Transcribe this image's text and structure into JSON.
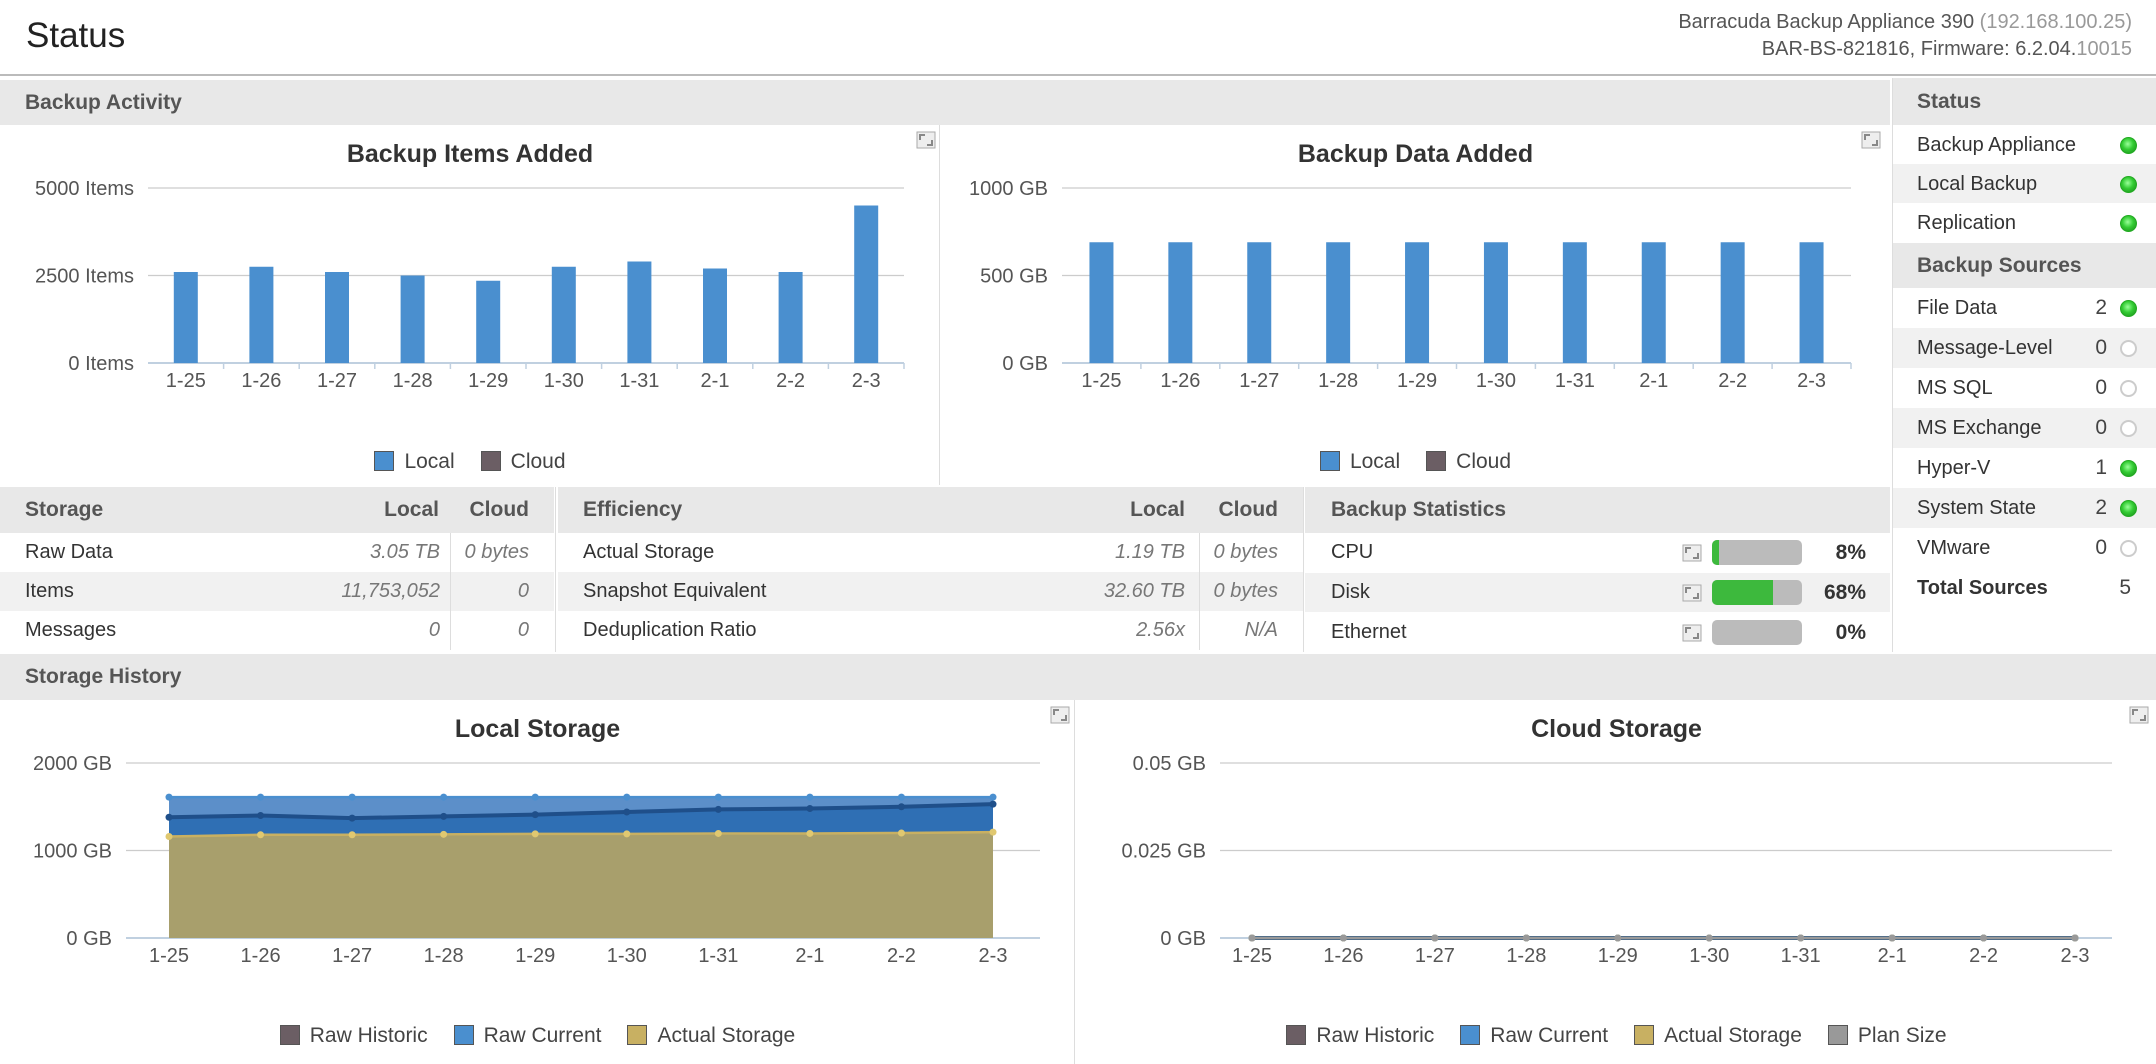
{
  "page_title": "Status",
  "device": {
    "model": "Barracuda Backup Appliance 390",
    "ip": "(192.168.100.25)",
    "serial_firmware": "BAR-BS-821816, Firmware: 6.2.04.",
    "build": "10015"
  },
  "sections": {
    "backup_activity": "Backup Activity",
    "storage_history": "Storage History"
  },
  "colors": {
    "local": "#4a8fcf",
    "cloud": "#6b5e64",
    "raw_historic": "#6b5e64",
    "raw_current": "#4a8fcf",
    "actual_storage": "#c8b062",
    "plan_size": "#999999",
    "ok_green": "#3db93d"
  },
  "chart_data": [
    {
      "id": "items",
      "type": "bar",
      "title": "Backup Items Added",
      "categories": [
        "1-25",
        "1-26",
        "1-27",
        "1-28",
        "1-29",
        "1-30",
        "1-31",
        "2-1",
        "2-2",
        "2-3"
      ],
      "series": [
        {
          "name": "Local",
          "values": [
            2600,
            2750,
            2600,
            2500,
            2350,
            2750,
            2900,
            2700,
            2600,
            4500
          ]
        },
        {
          "name": "Cloud",
          "values": [
            0,
            0,
            0,
            0,
            0,
            0,
            0,
            0,
            0,
            0
          ]
        }
      ],
      "yticks": [
        0,
        2500,
        5000
      ],
      "ytick_labels": [
        "0 Items",
        "2500 Items",
        "5000 Items"
      ],
      "ylim": [
        0,
        5000
      ]
    },
    {
      "id": "data",
      "type": "bar",
      "title": "Backup Data Added",
      "categories": [
        "1-25",
        "1-26",
        "1-27",
        "1-28",
        "1-29",
        "1-30",
        "1-31",
        "2-1",
        "2-2",
        "2-3"
      ],
      "series": [
        {
          "name": "Local",
          "values": [
            690,
            690,
            690,
            690,
            690,
            690,
            690,
            690,
            690,
            690
          ]
        },
        {
          "name": "Cloud",
          "values": [
            0,
            0,
            0,
            0,
            0,
            0,
            0,
            0,
            0,
            0
          ]
        }
      ],
      "yticks": [
        0,
        500,
        1000
      ],
      "ytick_labels": [
        "0 GB",
        "500 GB",
        "1000 GB"
      ],
      "ylim": [
        0,
        1000
      ]
    },
    {
      "id": "local_storage",
      "type": "area",
      "title": "Local Storage",
      "categories": [
        "1-25",
        "1-26",
        "1-27",
        "1-28",
        "1-29",
        "1-30",
        "1-31",
        "2-1",
        "2-2",
        "2-3"
      ],
      "series": [
        {
          "name": "Raw Historic",
          "values": [
            1610,
            1610,
            1610,
            1610,
            1610,
            1610,
            1610,
            1610,
            1610,
            1610
          ]
        },
        {
          "name": "Raw Current",
          "values": [
            1380,
            1400,
            1370,
            1390,
            1410,
            1440,
            1470,
            1480,
            1500,
            1530
          ]
        },
        {
          "name": "Actual Storage",
          "values": [
            1160,
            1180,
            1180,
            1185,
            1190,
            1190,
            1195,
            1195,
            1200,
            1210
          ]
        }
      ],
      "yticks": [
        0,
        1000,
        2000
      ],
      "ytick_labels": [
        "0 GB",
        "1000 GB",
        "2000 GB"
      ],
      "ylim": [
        0,
        2000
      ]
    },
    {
      "id": "cloud_storage",
      "type": "area",
      "title": "Cloud Storage",
      "categories": [
        "1-25",
        "1-26",
        "1-27",
        "1-28",
        "1-29",
        "1-30",
        "1-31",
        "2-1",
        "2-2",
        "2-3"
      ],
      "series": [
        {
          "name": "Raw Historic",
          "values": [
            0,
            0,
            0,
            0,
            0,
            0,
            0,
            0,
            0,
            0
          ]
        },
        {
          "name": "Raw Current",
          "values": [
            0,
            0,
            0,
            0,
            0,
            0,
            0,
            0,
            0,
            0
          ]
        },
        {
          "name": "Actual Storage",
          "values": [
            0,
            0,
            0,
            0,
            0,
            0,
            0,
            0,
            0,
            0
          ]
        },
        {
          "name": "Plan Size",
          "values": [
            0,
            0,
            0,
            0,
            0,
            0,
            0,
            0,
            0,
            0
          ]
        }
      ],
      "yticks": [
        0,
        0.025,
        0.05
      ],
      "ytick_labels": [
        "0 GB",
        "0.025 GB",
        "0.05 GB"
      ],
      "ylim": [
        0,
        0.05
      ]
    }
  ],
  "storage_table": {
    "header": "Storage",
    "col_local": "Local",
    "col_cloud": "Cloud",
    "rows": [
      {
        "label": "Raw Data",
        "local": "3.05 TB",
        "cloud": "0 bytes"
      },
      {
        "label": "Items",
        "local": "11,753,052",
        "cloud": "0"
      },
      {
        "label": "Messages",
        "local": "0",
        "cloud": "0"
      }
    ]
  },
  "efficiency_table": {
    "header": "Efficiency",
    "col_local": "Local",
    "col_cloud": "Cloud",
    "rows": [
      {
        "label": "Actual Storage",
        "local": "1.19 TB",
        "cloud": "0 bytes"
      },
      {
        "label": "Snapshot Equivalent",
        "local": "32.60 TB",
        "cloud": "0 bytes"
      },
      {
        "label": "Deduplication Ratio",
        "local": "2.56x",
        "cloud": "N/A"
      }
    ]
  },
  "backup_statistics": {
    "header": "Backup Statistics",
    "rows": [
      {
        "label": "CPU",
        "percent": "8%",
        "fraction": 0.08
      },
      {
        "label": "Disk",
        "percent": "68%",
        "fraction": 0.68
      },
      {
        "label": "Ethernet",
        "percent": "0%",
        "fraction": 0.0
      }
    ]
  },
  "status_panel": {
    "header": "Status",
    "items": [
      {
        "label": "Backup Appliance",
        "state": "ok"
      },
      {
        "label": "Local Backup",
        "state": "ok"
      },
      {
        "label": "Replication",
        "state": "ok"
      }
    ]
  },
  "sources_panel": {
    "header": "Backup Sources",
    "items": [
      {
        "label": "File Data",
        "count": "2",
        "state": "ok"
      },
      {
        "label": "Message-Level",
        "count": "0",
        "state": "off"
      },
      {
        "label": "MS SQL",
        "count": "0",
        "state": "off"
      },
      {
        "label": "MS Exchange",
        "count": "0",
        "state": "off"
      },
      {
        "label": "Hyper-V",
        "count": "1",
        "state": "ok"
      },
      {
        "label": "System State",
        "count": "2",
        "state": "ok"
      },
      {
        "label": "VMware",
        "count": "0",
        "state": "off"
      }
    ],
    "total_label": "Total Sources",
    "total_count": "5"
  }
}
